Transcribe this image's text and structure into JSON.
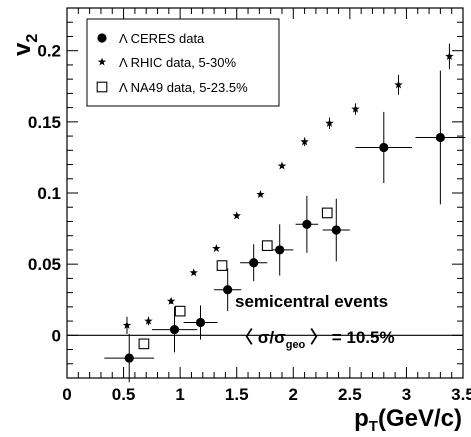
{
  "chart_data": {
    "type": "scatter",
    "ylabel": {
      "main": "v",
      "sub": "2"
    },
    "xlabel": {
      "main": "p",
      "sub": "T",
      "rest": "(GeV/c)"
    },
    "xlim": [
      0,
      3.5
    ],
    "ylim": [
      -0.03,
      0.23
    ],
    "x_ticks": [
      "0",
      "0.5",
      "1",
      "1.5",
      "2",
      "2.5",
      "3",
      "3.5"
    ],
    "y_ticks": [
      "0",
      "0.05",
      "0.1",
      "0.15",
      "0.2"
    ],
    "grid": false,
    "legend_position": "top-left",
    "series": [
      {
        "name": "Λ CERES data",
        "marker": "circle",
        "points": [
          {
            "x": 0.55,
            "y": -0.016,
            "xerr": 0.22,
            "yerr": 0.017
          },
          {
            "x": 0.95,
            "y": 0.004,
            "xerr": 0.2,
            "yerr": 0.016
          },
          {
            "x": 1.18,
            "y": 0.009,
            "xerr": 0.15,
            "yerr": 0.012
          },
          {
            "x": 1.42,
            "y": 0.032,
            "xerr": 0.12,
            "yerr": 0.015
          },
          {
            "x": 1.65,
            "y": 0.051,
            "xerr": 0.12,
            "yerr": 0.013
          },
          {
            "x": 1.88,
            "y": 0.06,
            "xerr": 0.12,
            "yerr": 0.018
          },
          {
            "x": 2.12,
            "y": 0.078,
            "xerr": 0.1,
            "yerr": 0.02
          },
          {
            "x": 2.38,
            "y": 0.074,
            "xerr": 0.12,
            "yerr": 0.022
          },
          {
            "x": 2.8,
            "y": 0.132,
            "xerr": 0.25,
            "yerr": 0.025
          },
          {
            "x": 3.3,
            "y": 0.139,
            "xerr": 0.22,
            "yerr": 0.047
          }
        ]
      },
      {
        "name": "Λ RHIC data,  5-30%",
        "marker": "star",
        "points": [
          {
            "x": 0.53,
            "y": 0.007,
            "yerr": 0.006
          },
          {
            "x": 0.72,
            "y": 0.01,
            "yerr": 0.003
          },
          {
            "x": 0.92,
            "y": 0.024,
            "yerr": 0.002
          },
          {
            "x": 1.12,
            "y": 0.044,
            "yerr": 0.0
          },
          {
            "x": 1.32,
            "y": 0.061,
            "yerr": 0.0
          },
          {
            "x": 1.5,
            "y": 0.084,
            "yerr": 0.0
          },
          {
            "x": 1.71,
            "y": 0.099,
            "yerr": 0.0
          },
          {
            "x": 1.9,
            "y": 0.119,
            "yerr": 0.0
          },
          {
            "x": 2.1,
            "y": 0.136,
            "yerr": 0.003
          },
          {
            "x": 2.32,
            "y": 0.149,
            "yerr": 0.004
          },
          {
            "x": 2.55,
            "y": 0.159,
            "yerr": 0.004
          },
          {
            "x": 2.93,
            "y": 0.176,
            "yerr": 0.007
          },
          {
            "x": 3.38,
            "y": 0.196,
            "yerr": 0.009
          }
        ]
      },
      {
        "name": "Λ NA49 data,  5-23.5%",
        "marker": "square-open",
        "points": [
          {
            "x": 0.68,
            "y": -0.006,
            "yerr": 0.0
          },
          {
            "x": 1.0,
            "y": 0.017,
            "yerr": 0.0
          },
          {
            "x": 1.37,
            "y": 0.049,
            "yerr": 0.0
          },
          {
            "x": 1.77,
            "y": 0.063,
            "yerr": 0.0
          },
          {
            "x": 2.3,
            "y": 0.086,
            "yerr": 0.0
          }
        ]
      }
    ],
    "annotations": {
      "line1": "semicentral events",
      "line2_open": "〈 σ/σ",
      "line2_sub": "geo",
      "line2_close": " 〉 = 10.5%"
    }
  }
}
